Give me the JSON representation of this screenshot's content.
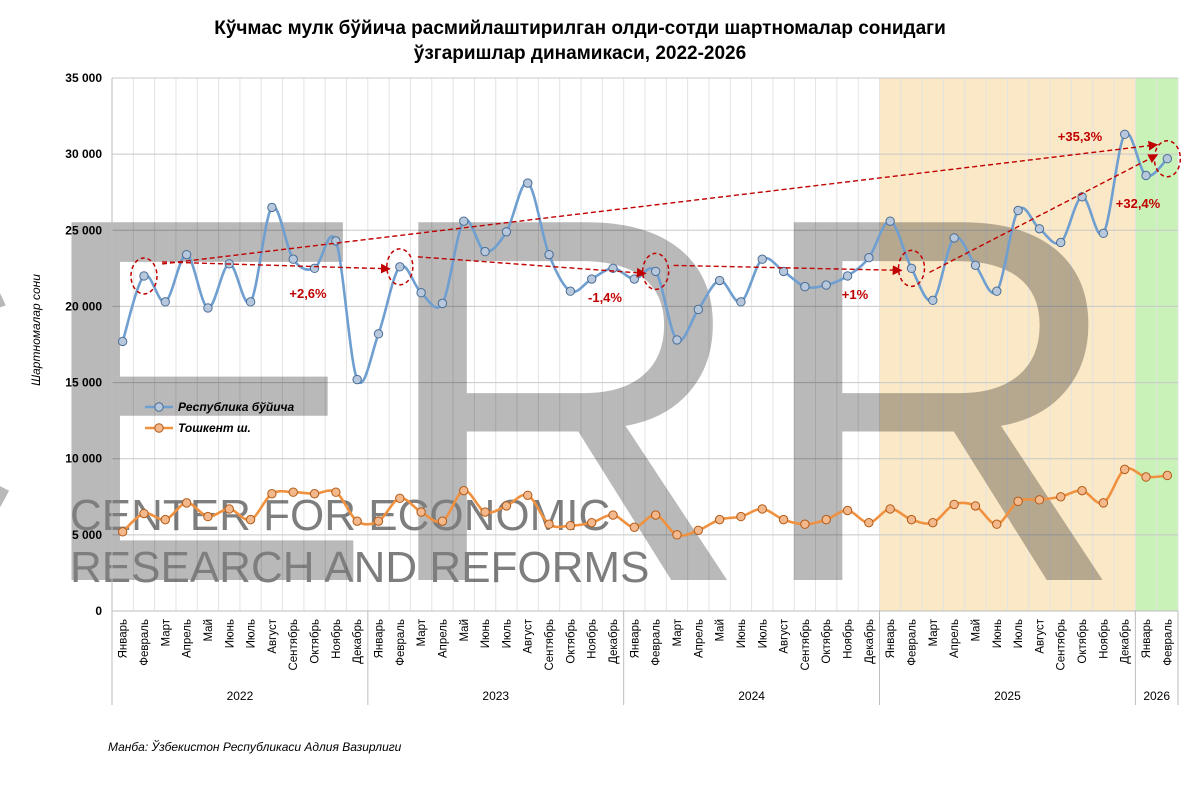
{
  "chart_data": {
    "type": "line",
    "title_line1": "Кўчмас мулк бўйича расмийлаштирилган олди-сотди шартномалар сонидаги",
    "title_line2": "ўзгаришлар динамикаси, 2022-2026",
    "ylabel": "Шартномалар сони",
    "ylim": [
      0,
      35000
    ],
    "yticks": [
      0,
      5000,
      10000,
      15000,
      20000,
      25000,
      30000,
      35000
    ],
    "ytick_labels": [
      "0",
      "5 000",
      "10 000",
      "15 000",
      "20 000",
      "25 000",
      "30 000",
      "35 000"
    ],
    "grid": true,
    "legend_position": "left-middle",
    "categories": [
      "Январь",
      "Февраль",
      "Март",
      "Апрель",
      "Май",
      "Июнь",
      "Июль",
      "Август",
      "Сентябрь",
      "Октябрь",
      "Ноябрь",
      "Декабрь",
      "Январь",
      "Февраль",
      "Март",
      "Апрель",
      "Май",
      "Июнь",
      "Июль",
      "Август",
      "Сентябрь",
      "Октябрь",
      "Ноябрь",
      "Декабрь",
      "Январь",
      "Февраль",
      "Март",
      "Апрель",
      "Май",
      "Июнь",
      "Июль",
      "Август",
      "Сентябрь",
      "Октябрь",
      "Ноябрь",
      "Декабрь",
      "Январь",
      "Февраль",
      "Март",
      "Апрель",
      "Май",
      "Июнь",
      "Июль",
      "Август",
      "Сентябрь",
      "Октябрь",
      "Ноябрь",
      "Декабрь",
      "Январь",
      "Февраль"
    ],
    "years": [
      {
        "label": "2022",
        "start": 0,
        "count": 12
      },
      {
        "label": "2023",
        "start": 12,
        "count": 12
      },
      {
        "label": "2024",
        "start": 24,
        "count": 12
      },
      {
        "label": "2025",
        "start": 36,
        "count": 12
      },
      {
        "label": "2026",
        "start": 48,
        "count": 2
      }
    ],
    "series": [
      {
        "name": "Республика бўйича",
        "color": "#6f9fd0",
        "values": [
          17700,
          22000,
          20300,
          23400,
          19900,
          22800,
          20300,
          26500,
          23100,
          22500,
          24300,
          15200,
          18200,
          22600,
          20900,
          20200,
          25600,
          23600,
          24900,
          28100,
          23400,
          21000,
          21800,
          22500,
          21800,
          22300,
          17800,
          19800,
          21700,
          20300,
          23100,
          22300,
          21300,
          21400,
          22000,
          23200,
          25600,
          22500,
          20400,
          24500,
          22700,
          21000,
          26300,
          25100,
          24200,
          27200,
          24800,
          31300,
          28600,
          29700
        ]
      },
      {
        "name": "Тошкент ш.",
        "color": "#f0913f",
        "values": [
          5200,
          6400,
          6000,
          7100,
          6200,
          6700,
          6000,
          7700,
          7800,
          7700,
          7800,
          5900,
          5900,
          7400,
          6500,
          5900,
          7900,
          6500,
          6900,
          7600,
          5700,
          5600,
          5800,
          6300,
          5500,
          6300,
          5000,
          5300,
          6000,
          6200,
          6700,
          6000,
          5700,
          6000,
          6600,
          5800,
          6700,
          6000,
          5800,
          7000,
          6900,
          5700,
          7200,
          7300,
          7500,
          7900,
          7100,
          9300,
          8800,
          8900
        ]
      }
    ],
    "highlight_regions": [
      {
        "from": 36,
        "to": 47,
        "color": "#fbe8c6"
      },
      {
        "from": 48,
        "to": 49,
        "color": "#c9f2b9"
      }
    ],
    "annotations": [
      {
        "text": "+2,6%",
        "from": 1,
        "to": 13,
        "color": "#c00000"
      },
      {
        "text": "-1,4%",
        "from": 13,
        "to": 25,
        "color": "#c00000"
      },
      {
        "text": "+1%",
        "from": 25,
        "to": 37,
        "color": "#c00000"
      },
      {
        "text": "+35,3%",
        "from": 1,
        "to": 49,
        "color": "#c00000"
      },
      {
        "text": "+32,4%",
        "from": 37,
        "to": 49,
        "color": "#c00000"
      }
    ]
  },
  "watermark": {
    "letters": "CERR",
    "line1": "CENTER FOR ECONOMIC",
    "line2": "RESEARCH AND REFORMS",
    "color": "#9cb7c9"
  },
  "source_note": "Манба: Ўзбекистон Республикаси Адлия Вазирлиги"
}
